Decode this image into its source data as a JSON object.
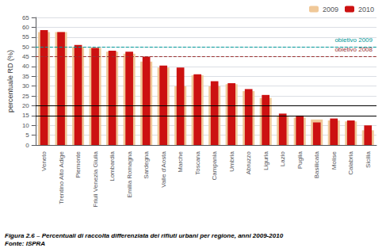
{
  "chart_data": {
    "type": "bar",
    "title": "Figura 2.6 – Percentuali di raccolta differenziata dei rifiuti urbani per regione, anni 2009-2010",
    "subtitle": "Fonte: ISPRA",
    "ylabel": "percentuale RD (%)",
    "categories": [
      "Veneto",
      "Trentino Alto Adige",
      "Piemonte",
      "Friuli Venezia Giulia",
      "Lombardia",
      "Emilia Romagna",
      "Sardegna",
      "Valle d'Aosta",
      "Marche",
      "Toscana",
      "Campania",
      "Umbria",
      "Abruzzo",
      "Liguria",
      "Lazio",
      "Puglia",
      "Basilicata",
      "Molise",
      "Calabria",
      "Sicilia"
    ],
    "series": [
      {
        "name": "2009",
        "color": "#f0c898",
        "values": [
          57.5,
          57.5,
          50.0,
          49.5,
          47.5,
          46.5,
          42.5,
          39.5,
          30.0,
          35.5,
          30.0,
          31.0,
          27.5,
          24.0,
          14.5,
          14.0,
          13.0,
          12.5,
          12.0,
          7.5
        ]
      },
      {
        "name": "2010",
        "color": "#cc1111",
        "values": [
          58.5,
          57.5,
          51.0,
          49.5,
          48.0,
          47.5,
          45.0,
          40.5,
          39.5,
          36.0,
          32.5,
          31.5,
          28.5,
          25.5,
          16.0,
          15.0,
          11.5,
          13.5,
          12.5,
          10.0
        ]
      }
    ],
    "annotations": [
      {
        "y": 50,
        "label": "obietivo 2009",
        "color": "#009999",
        "line_style": "dashed"
      },
      {
        "y": 45,
        "label": "obietivo 2008",
        "color": "#993333",
        "line_style": "dashed"
      },
      {
        "y": 20,
        "color": "#000000",
        "line_style": "solid"
      },
      {
        "y": 15,
        "color": "#000000",
        "line_style": "solid"
      }
    ],
    "ylim": [
      0,
      65
    ],
    "yticks": [
      0,
      5,
      10,
      15,
      20,
      25,
      30,
      35,
      40,
      45,
      50,
      55,
      60,
      65
    ],
    "grid": true,
    "legend": "upper right"
  }
}
